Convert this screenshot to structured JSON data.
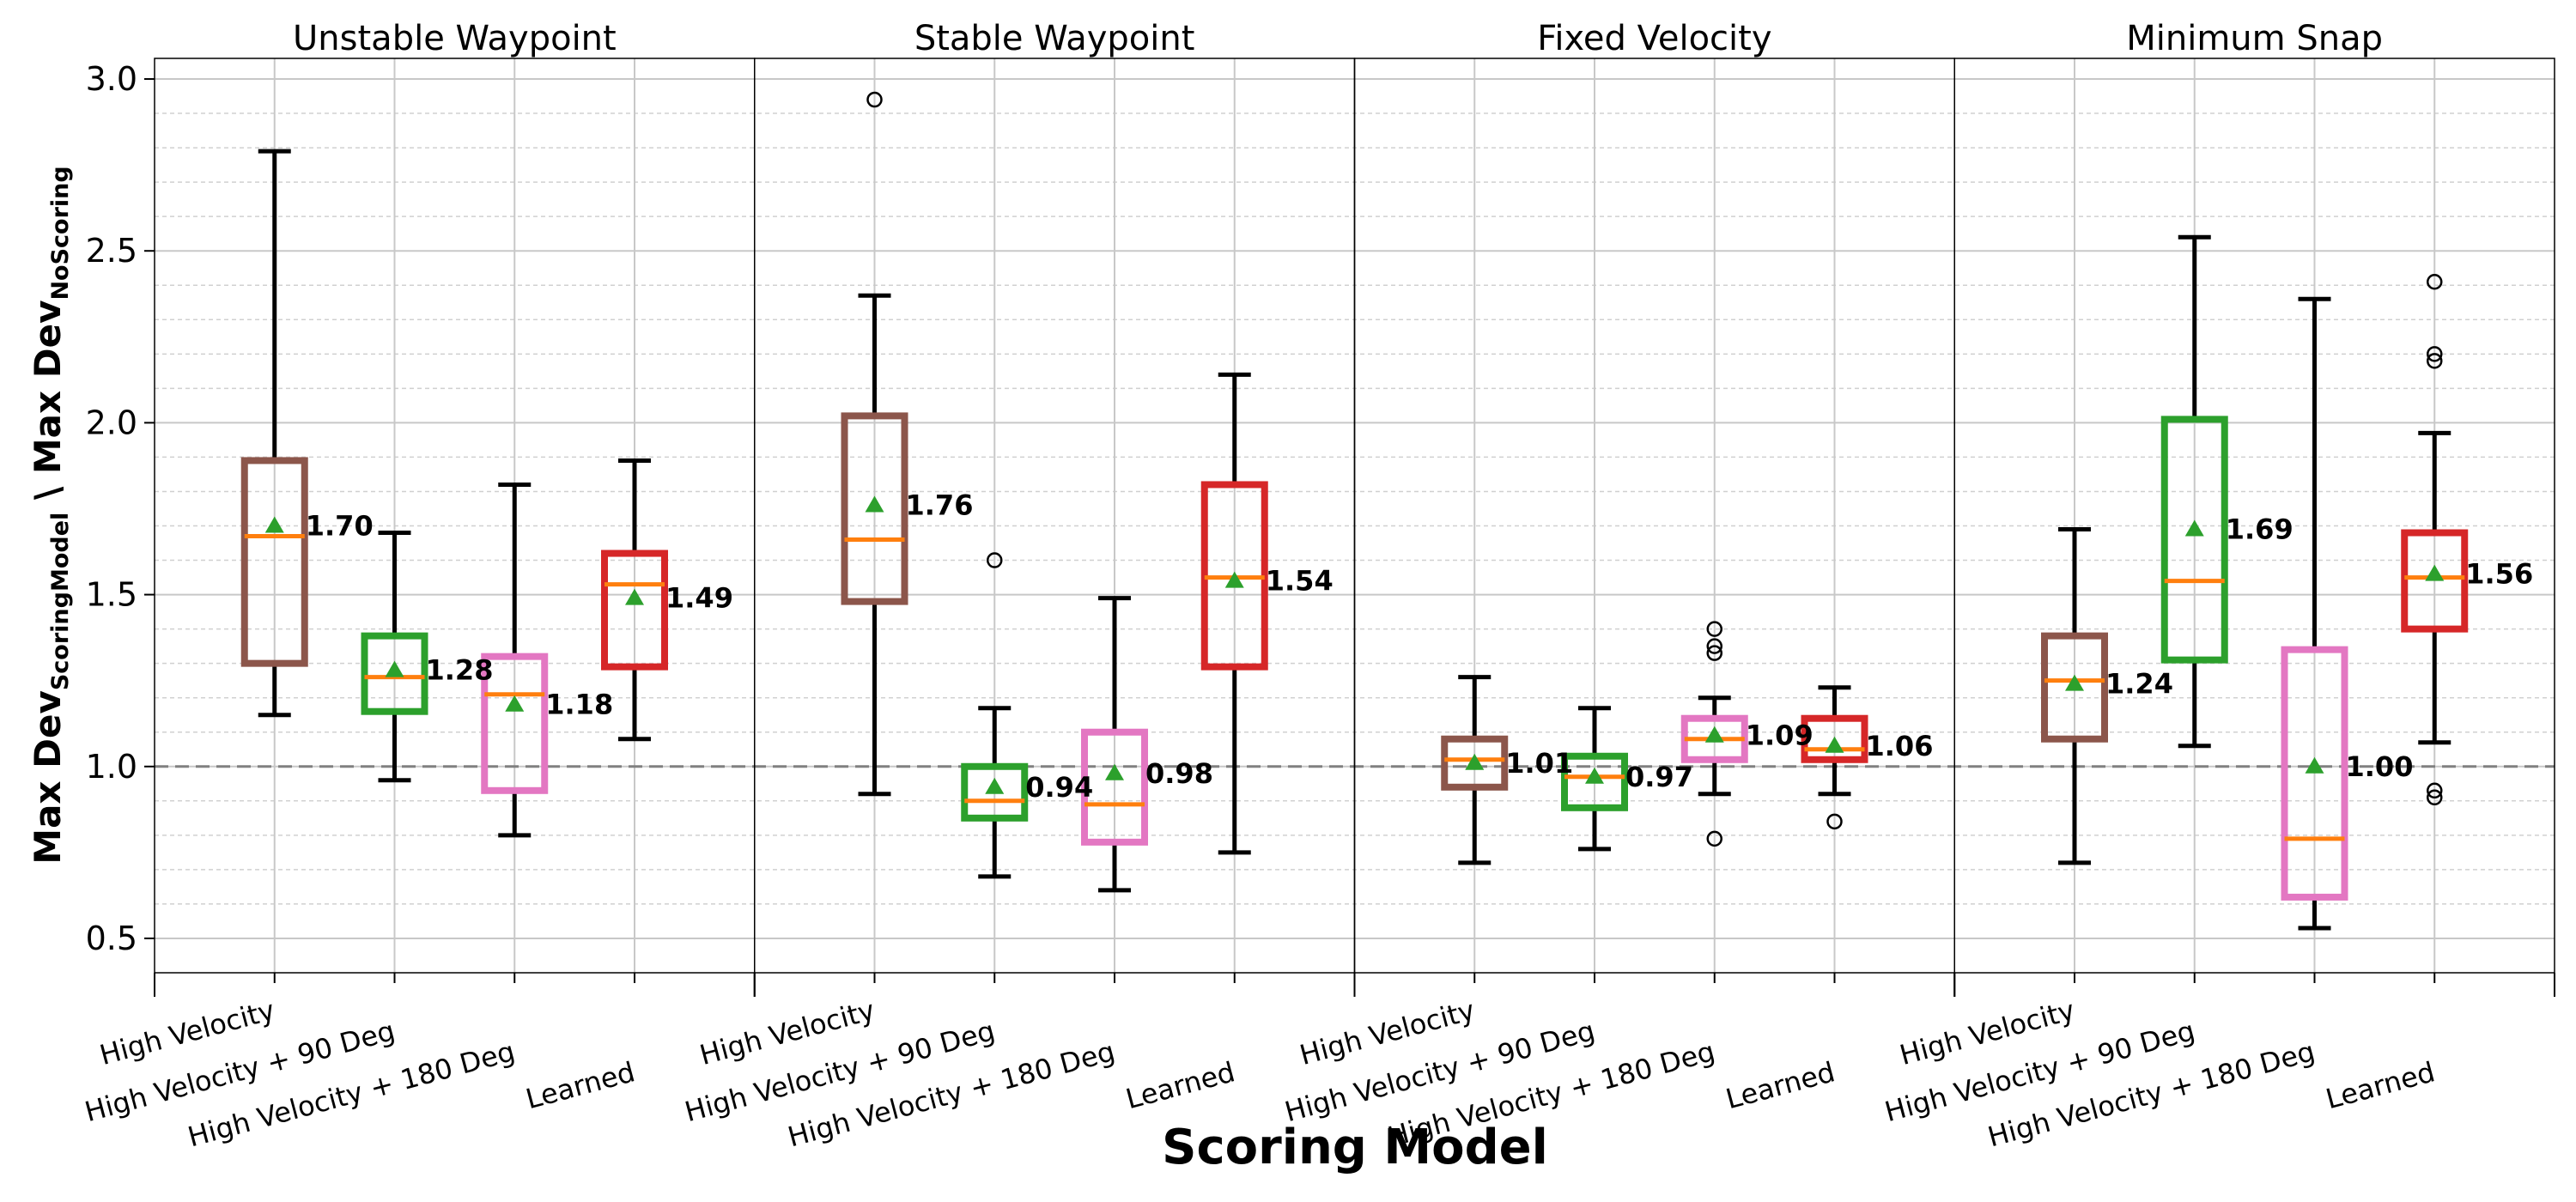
{
  "chart_data": {
    "type": "box",
    "xlabel": "Scoring Model",
    "ylabel_main": "Max Dev",
    "ylabel_sub1": "ScoringModel",
    "ylabel_sep": " \\ ",
    "ylabel_sub2": "NoScoring",
    "ylim": [
      0.4,
      3.06
    ],
    "yticks": [
      "0.5",
      "1.0",
      "1.5",
      "2.0",
      "2.5",
      "3.0"
    ],
    "reference_line": 1.0,
    "grid": true,
    "categories": [
      "High Velocity",
      "High Velocity + 90 Deg",
      "High Velocity + 180 Deg",
      "Learned"
    ],
    "box_colors": [
      "#8c564b",
      "#2ca02c",
      "#e377c2",
      "#d62728"
    ],
    "median_color": "#ff7f0e",
    "mean_marker_color": "#2ca02c",
    "panels": [
      {
        "title": "Unstable Waypoint",
        "boxes": [
          {
            "whislo": 1.15,
            "q1": 1.3,
            "med": 1.67,
            "q3": 1.89,
            "whishi": 2.79,
            "mean": 1.7,
            "mean_label": "1.70",
            "fliers": []
          },
          {
            "whislo": 0.96,
            "q1": 1.16,
            "med": 1.26,
            "q3": 1.38,
            "whishi": 1.68,
            "mean": 1.28,
            "mean_label": "1.28",
            "fliers": []
          },
          {
            "whislo": 0.8,
            "q1": 0.93,
            "med": 1.21,
            "q3": 1.32,
            "whishi": 1.82,
            "mean": 1.18,
            "mean_label": "1.18",
            "fliers": []
          },
          {
            "whislo": 1.08,
            "q1": 1.29,
            "med": 1.53,
            "q3": 1.62,
            "whishi": 1.89,
            "mean": 1.49,
            "mean_label": "1.49",
            "fliers": []
          }
        ]
      },
      {
        "title": "Stable Waypoint",
        "boxes": [
          {
            "whislo": 0.92,
            "q1": 1.48,
            "med": 1.66,
            "q3": 2.02,
            "whishi": 2.37,
            "mean": 1.76,
            "mean_label": "1.76",
            "fliers": [
              2.94
            ]
          },
          {
            "whislo": 0.68,
            "q1": 0.85,
            "med": 0.9,
            "q3": 1.0,
            "whishi": 1.17,
            "mean": 0.94,
            "mean_label": "0.94",
            "fliers": [
              1.6
            ]
          },
          {
            "whislo": 0.64,
            "q1": 0.78,
            "med": 0.89,
            "q3": 1.1,
            "whishi": 1.49,
            "mean": 0.98,
            "mean_label": "0.98",
            "fliers": []
          },
          {
            "whislo": 0.75,
            "q1": 1.29,
            "med": 1.55,
            "q3": 1.82,
            "whishi": 2.14,
            "mean": 1.54,
            "mean_label": "1.54",
            "fliers": []
          }
        ]
      },
      {
        "title": "Fixed Velocity",
        "boxes": [
          {
            "whislo": 0.72,
            "q1": 0.94,
            "med": 1.02,
            "q3": 1.08,
            "whishi": 1.26,
            "mean": 1.01,
            "mean_label": "1.01",
            "fliers": []
          },
          {
            "whislo": 0.76,
            "q1": 0.88,
            "med": 0.97,
            "q3": 1.03,
            "whishi": 1.17,
            "mean": 0.97,
            "mean_label": "0.97",
            "fliers": []
          },
          {
            "whislo": 0.92,
            "q1": 1.02,
            "med": 1.08,
            "q3": 1.14,
            "whishi": 1.2,
            "mean": 1.09,
            "mean_label": "1.09",
            "fliers": [
              1.4,
              1.35,
              1.33,
              0.79
            ]
          },
          {
            "whislo": 0.92,
            "q1": 1.02,
            "med": 1.05,
            "q3": 1.14,
            "whishi": 1.23,
            "mean": 1.06,
            "mean_label": "1.06",
            "fliers": [
              0.84
            ]
          }
        ]
      },
      {
        "title": "Minimum Snap",
        "boxes": [
          {
            "whislo": 0.72,
            "q1": 1.08,
            "med": 1.25,
            "q3": 1.38,
            "whishi": 1.69,
            "mean": 1.24,
            "mean_label": "1.24",
            "fliers": []
          },
          {
            "whislo": 1.06,
            "q1": 1.31,
            "med": 1.54,
            "q3": 2.01,
            "whishi": 2.54,
            "mean": 1.69,
            "mean_label": "1.69",
            "fliers": []
          },
          {
            "whislo": 0.53,
            "q1": 0.62,
            "med": 0.79,
            "q3": 1.34,
            "whishi": 2.36,
            "mean": 1.0,
            "mean_label": "1.00",
            "fliers": []
          },
          {
            "whislo": 1.07,
            "q1": 1.4,
            "med": 1.55,
            "q3": 1.68,
            "whishi": 1.97,
            "mean": 1.56,
            "mean_label": "1.56",
            "fliers": [
              2.41,
              2.2,
              2.18,
              0.93,
              0.91
            ]
          }
        ]
      }
    ]
  }
}
